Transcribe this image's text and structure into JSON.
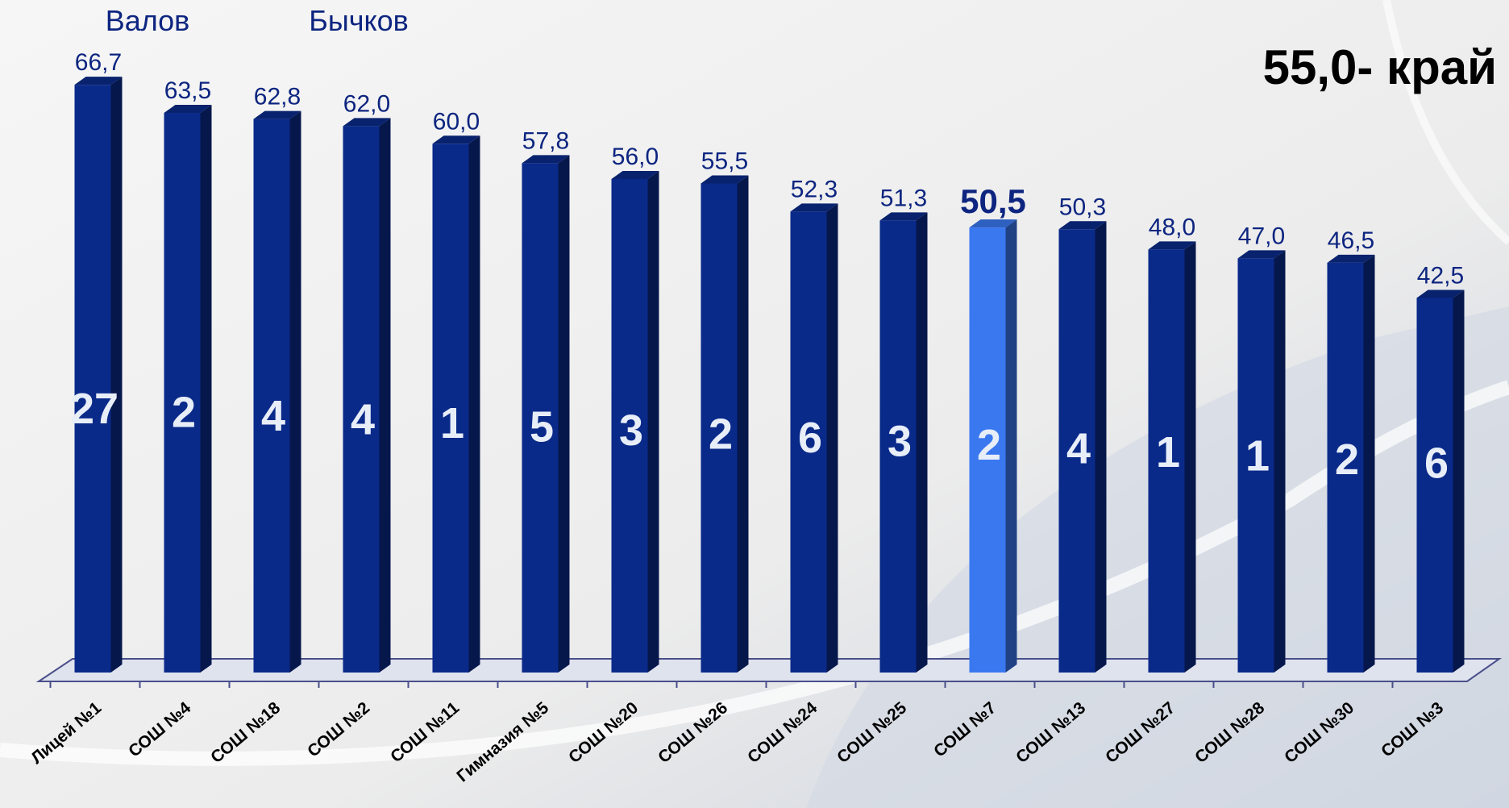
{
  "chart_data": {
    "type": "bar3d",
    "annotations": [
      "Валов",
      "Бычков",
      "55,0- край"
    ],
    "categories": [
      "Лицей №1",
      "СОШ №4",
      "СОШ №18",
      "СОШ №2",
      "СОШ №11",
      "Гимназия №5",
      "СОШ №20",
      "СОШ №26",
      "СОШ №24",
      "СОШ №25",
      "СОШ №7",
      "СОШ №13",
      "СОШ №27",
      "СОШ №28",
      "СОШ №30",
      "СОШ №3"
    ],
    "values": [
      66.7,
      63.5,
      62.8,
      62.0,
      60.0,
      57.8,
      56.0,
      55.5,
      52.3,
      51.3,
      50.5,
      50.3,
      48.0,
      47.0,
      46.5,
      42.5
    ],
    "value_labels": [
      "66,7",
      "63,5",
      "62,8",
      "62,0",
      "60,0",
      "57,8",
      "56,0",
      "55,5",
      "52,3",
      "51,3",
      "50,5",
      "50,3",
      "48,0",
      "47,0",
      "46,5",
      "42,5"
    ],
    "counts": [
      27,
      2,
      4,
      4,
      1,
      5,
      3,
      2,
      6,
      3,
      2,
      4,
      1,
      1,
      2,
      6
    ],
    "color": "#0a2a8a",
    "colors": [
      "#0a2a8a",
      "#0a2a8a",
      "#0a2a8a",
      "#0a2a8a",
      "#0a2a8a",
      "#0a2a8a",
      "#0a2a8a",
      "#0a2a8a",
      "#0a2a8a",
      "#0a2a8a",
      "#3a78f0",
      "#0a2a8a",
      "#0a2a8a",
      "#0a2a8a",
      "#0a2a8a",
      "#0a2a8a"
    ],
    "ylim": [
      0,
      70
    ]
  }
}
